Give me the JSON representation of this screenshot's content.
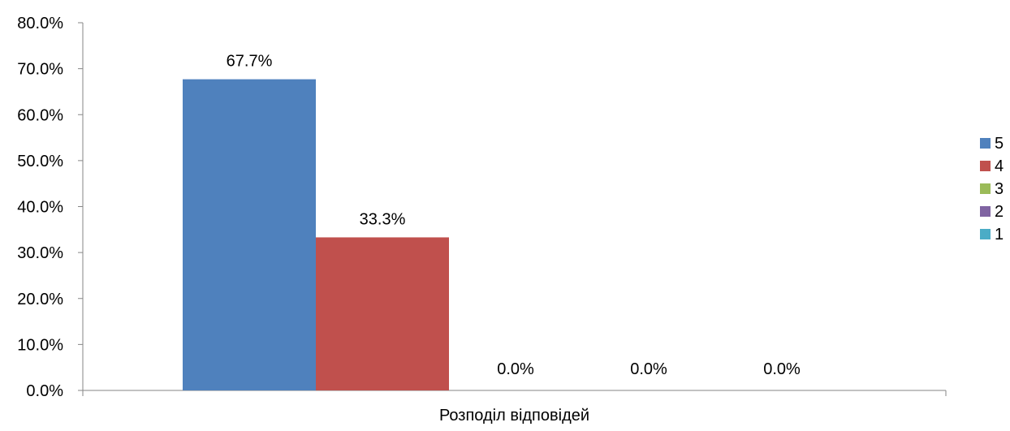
{
  "chart_data": {
    "type": "bar",
    "categories": [
      "Розподіл відповідей"
    ],
    "series": [
      {
        "name": "5",
        "values": [
          67.7
        ],
        "label": "67.7%",
        "color": "#4f81bd"
      },
      {
        "name": "4",
        "values": [
          33.3
        ],
        "label": "33.3%",
        "color": "#c0504d"
      },
      {
        "name": "3",
        "values": [
          0.0
        ],
        "label": "0.0%",
        "color": "#9bbb59"
      },
      {
        "name": "2",
        "values": [
          0.0
        ],
        "label": "0.0%",
        "color": "#8064a2"
      },
      {
        "name": "1",
        "values": [
          0.0
        ],
        "label": "0.0%",
        "color": "#4bacc6"
      }
    ],
    "ylim": [
      0,
      80
    ],
    "yticks": [
      "0.0%",
      "10.0%",
      "20.0%",
      "30.0%",
      "40.0%",
      "50.0%",
      "60.0%",
      "70.0%",
      "80.0%"
    ],
    "grid": false,
    "legend_position": "right"
  }
}
